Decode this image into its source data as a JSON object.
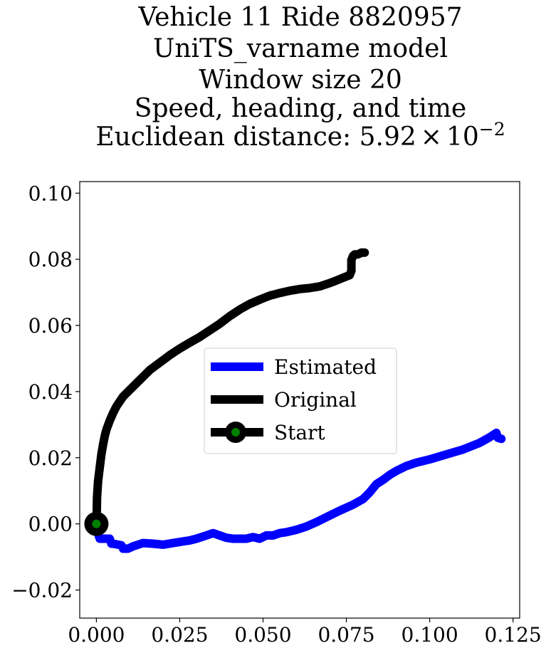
{
  "chart_data": {
    "type": "line",
    "title_lines": [
      "Vehicle 11 Ride 8820957",
      "UniTS_varname model",
      "Window size 20",
      "Speed, heading, and time"
    ],
    "title_metric_prefix": "Euclidean distance: 5.92",
    "title_metric_times": "×",
    "title_metric_base": "10",
    "title_metric_exponent": "−2",
    "xlabel": "",
    "ylabel": "",
    "xlim": [
      -0.005,
      0.127
    ],
    "ylim": [
      -0.0285,
      0.1035
    ],
    "xticks": [
      0.0,
      0.025,
      0.05,
      0.075,
      0.1,
      0.125
    ],
    "xtick_labels": [
      "0.000",
      "0.025",
      "0.050",
      "0.075",
      "0.100",
      "0.125"
    ],
    "yticks": [
      -0.02,
      0.0,
      0.02,
      0.04,
      0.06,
      0.08,
      0.1
    ],
    "ytick_labels": [
      "−0.02",
      "0.00",
      "0.02",
      "0.04",
      "0.06",
      "0.08",
      "0.10"
    ],
    "grid": false,
    "legend_position": "center",
    "series": [
      {
        "name": "Estimated",
        "color": "#0000ff",
        "x": [
          0.0,
          0.0005,
          0.001,
          0.002,
          0.004,
          0.0045,
          0.005,
          0.0075,
          0.008,
          0.0085,
          0.0095,
          0.011,
          0.014,
          0.017,
          0.02,
          0.023,
          0.026,
          0.028,
          0.03,
          0.033,
          0.035,
          0.037,
          0.039,
          0.041,
          0.043,
          0.045,
          0.047,
          0.049,
          0.051,
          0.053,
          0.055,
          0.057,
          0.06,
          0.063,
          0.066,
          0.07,
          0.073,
          0.077,
          0.08,
          0.082,
          0.084,
          0.086,
          0.088,
          0.09,
          0.093,
          0.096,
          0.1,
          0.105,
          0.11,
          0.115,
          0.118,
          0.12,
          0.1205,
          0.1215
        ],
        "y": [
          0.0,
          -0.003,
          -0.0045,
          -0.0045,
          -0.0045,
          -0.006,
          -0.006,
          -0.0065,
          -0.0075,
          -0.0075,
          -0.0075,
          -0.0068,
          -0.0058,
          -0.006,
          -0.0063,
          -0.0058,
          -0.0053,
          -0.005,
          -0.0045,
          -0.0035,
          -0.0028,
          -0.0035,
          -0.0042,
          -0.0045,
          -0.0045,
          -0.0045,
          -0.004,
          -0.0045,
          -0.0035,
          -0.0035,
          -0.0028,
          -0.0025,
          -0.0018,
          -0.0008,
          0.0005,
          0.0025,
          0.004,
          0.0058,
          0.0075,
          0.0095,
          0.012,
          0.0133,
          0.0148,
          0.016,
          0.0175,
          0.0185,
          0.0195,
          0.021,
          0.0225,
          0.0245,
          0.0262,
          0.0275,
          0.026,
          0.0257
        ]
      },
      {
        "name": "Original",
        "color": "#000000",
        "x": [
          0.0,
          0.0001,
          0.0002,
          0.0005,
          0.001,
          0.0015,
          0.002,
          0.0025,
          0.003,
          0.004,
          0.005,
          0.006,
          0.007,
          0.008,
          0.01,
          0.012,
          0.014,
          0.016,
          0.018,
          0.02,
          0.022,
          0.025,
          0.028,
          0.031,
          0.034,
          0.037,
          0.04,
          0.043,
          0.046,
          0.049,
          0.052,
          0.055,
          0.058,
          0.061,
          0.064,
          0.067,
          0.07,
          0.072,
          0.074,
          0.076,
          0.0765,
          0.0765,
          0.0765,
          0.077,
          0.0775,
          0.0785,
          0.0795,
          0.0805
        ],
        "y": [
          0.0,
          0.003,
          0.008,
          0.013,
          0.017,
          0.021,
          0.024,
          0.0265,
          0.0285,
          0.0312,
          0.0335,
          0.0355,
          0.037,
          0.0385,
          0.0405,
          0.0425,
          0.0445,
          0.0465,
          0.048,
          0.0495,
          0.051,
          0.053,
          0.0548,
          0.0565,
          0.0585,
          0.0605,
          0.0628,
          0.0648,
          0.0665,
          0.0678,
          0.069,
          0.0698,
          0.0705,
          0.071,
          0.0713,
          0.0718,
          0.0728,
          0.0736,
          0.0744,
          0.0752,
          0.0765,
          0.0782,
          0.0798,
          0.081,
          0.0815,
          0.0815,
          0.082,
          0.082
        ]
      }
    ],
    "start_marker": {
      "name": "Start",
      "x": 0.0,
      "y": 0.0,
      "edge_color": "#000000",
      "face_color": "#008000"
    },
    "legend_entries": [
      "Estimated",
      "Original",
      "Start"
    ]
  }
}
